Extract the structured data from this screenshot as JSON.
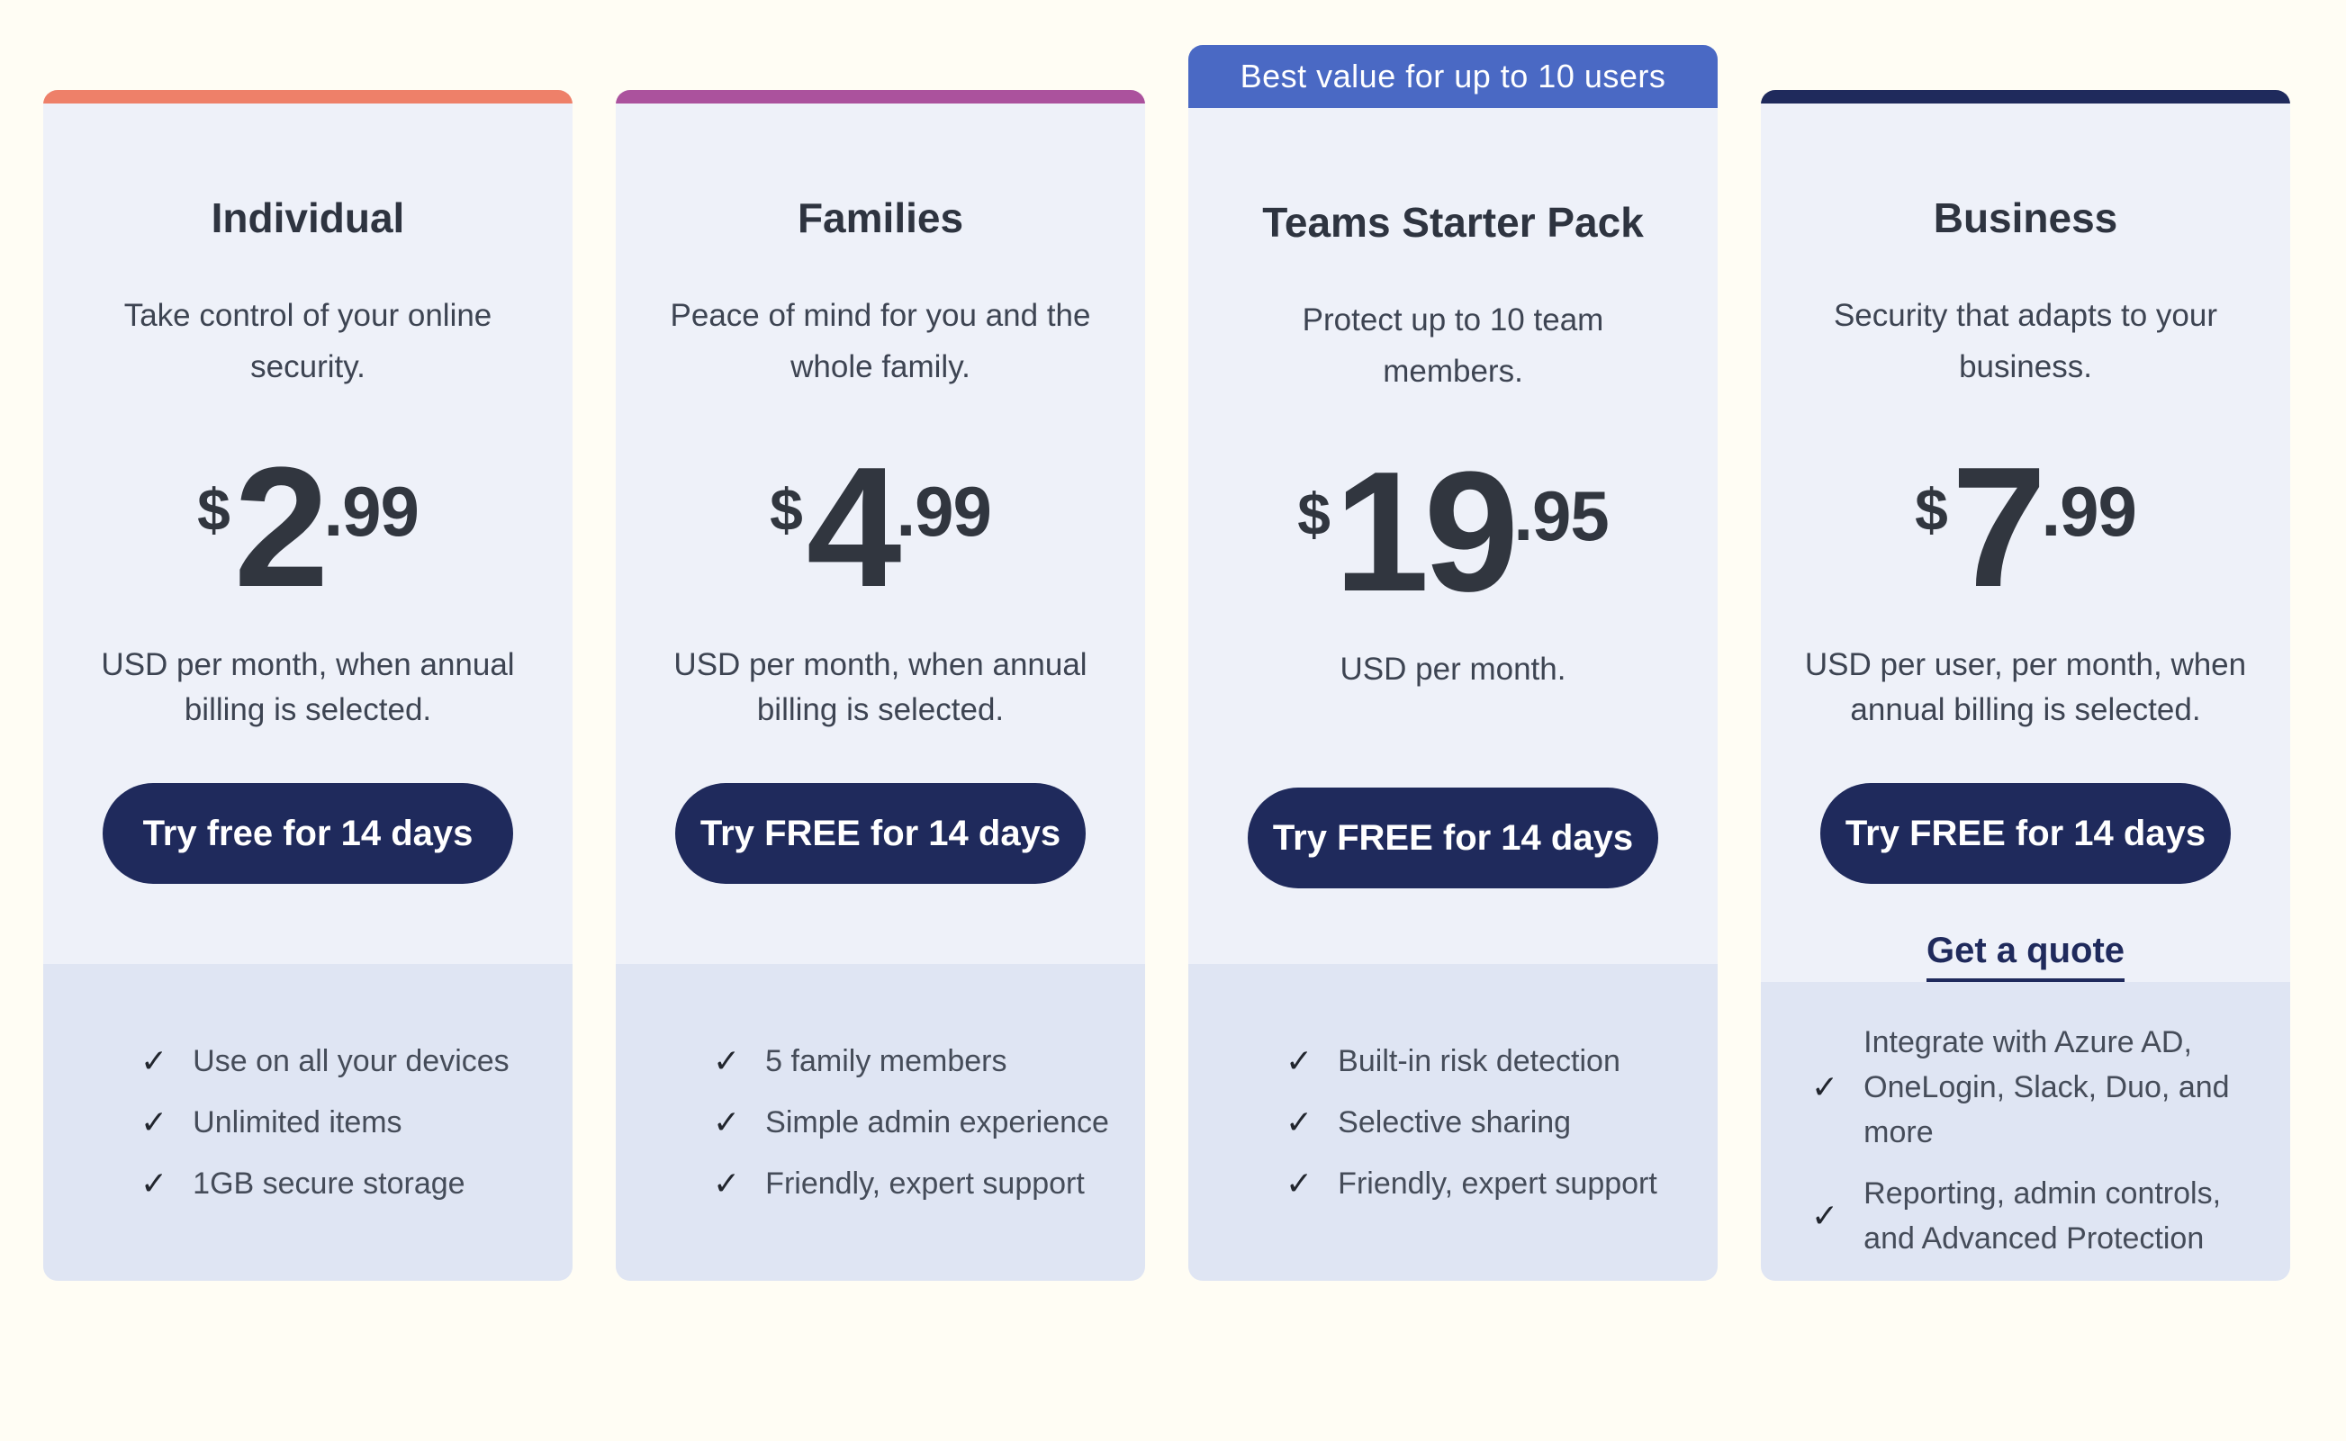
{
  "theme": {
    "page_background": "#fffdf4",
    "card_background": "#eef1f9",
    "footer_background": "#dfe5f3",
    "button_color": "#1f2a5c",
    "button_text_color": "#ffffff",
    "link_color": "#1f2a5c",
    "badge_background": "#4a69c4",
    "check_icon": "✓"
  },
  "plans": [
    {
      "id": "individual",
      "accent_color": "#ee8069",
      "title": "Individual",
      "tagline": "Take control of your online security.",
      "currency": "$",
      "price_major": "2",
      "price_minor": ".99",
      "billing_note": "USD per month, when annual billing is selected.",
      "cta_label": "Try free for 14 days",
      "features": [
        "Use on all your devices",
        "Unlimited items",
        "1GB secure storage"
      ]
    },
    {
      "id": "families",
      "accent_color": "#ab529d",
      "title": "Families",
      "tagline": "Peace of mind for you and the whole family.",
      "currency": "$",
      "price_major": "4",
      "price_minor": ".99",
      "billing_note": "USD per month, when annual billing is selected.",
      "cta_label": "Try FREE for 14 days",
      "features": [
        "5 family members",
        "Simple admin experience",
        "Friendly, expert support"
      ]
    },
    {
      "id": "teams-starter-pack",
      "badge_label": "Best value for up to 10 users",
      "badge_color": "#4a69c4",
      "title": "Teams Starter Pack",
      "tagline": "Protect up to 10 team members.",
      "currency": "$",
      "price_major": "19",
      "price_minor": ".95",
      "billing_note": "USD per month.",
      "cta_label": "Try FREE for 14 days",
      "features": [
        "Built-in risk detection",
        "Selective sharing",
        "Friendly, expert support"
      ]
    },
    {
      "id": "business",
      "accent_color": "#1f2a5c",
      "title": "Business",
      "tagline": "Security that adapts to your business.",
      "currency": "$",
      "price_major": "7",
      "price_minor": ".99",
      "billing_note": "USD per user, per month, when annual billing is selected.",
      "cta_label": "Try FREE for 14 days",
      "secondary_cta_label": "Get a quote",
      "features": [
        "Integrate with Azure AD, OneLogin, Slack, Duo, and more",
        "Reporting, admin controls, and Advanced Protection"
      ]
    }
  ]
}
